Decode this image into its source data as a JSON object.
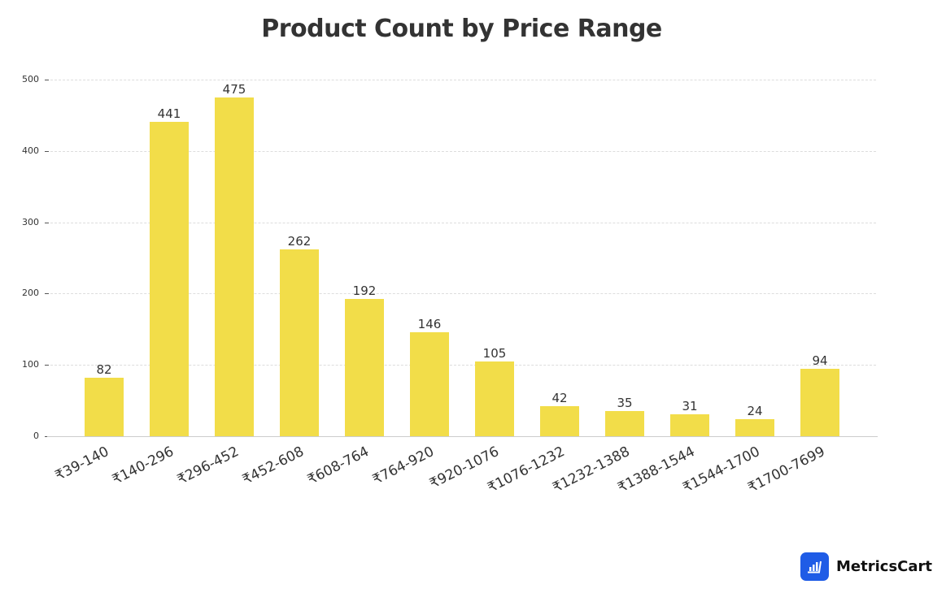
{
  "chart_data": {
    "type": "bar",
    "title": "Product Count by Price Range",
    "xlabel": "",
    "ylabel": "",
    "ylim": [
      0,
      500
    ],
    "yticks": [
      0,
      100,
      200,
      300,
      400,
      500
    ],
    "grid": true,
    "legend": null,
    "categories": [
      "₹39-140",
      "₹140-296",
      "₹296-452",
      "₹452-608",
      "₹608-764",
      "₹764-920",
      "₹920-1076",
      "₹1076-1232",
      "₹1232-1388",
      "₹1388-1544",
      "₹1544-1700",
      "₹1700-7699"
    ],
    "values": [
      82,
      441,
      475,
      262,
      192,
      146,
      105,
      42,
      35,
      31,
      24,
      94
    ],
    "bar_color": "#f2dd49"
  },
  "brand": {
    "name": "MetricsCart",
    "logo_color": "#1f5ce6"
  }
}
